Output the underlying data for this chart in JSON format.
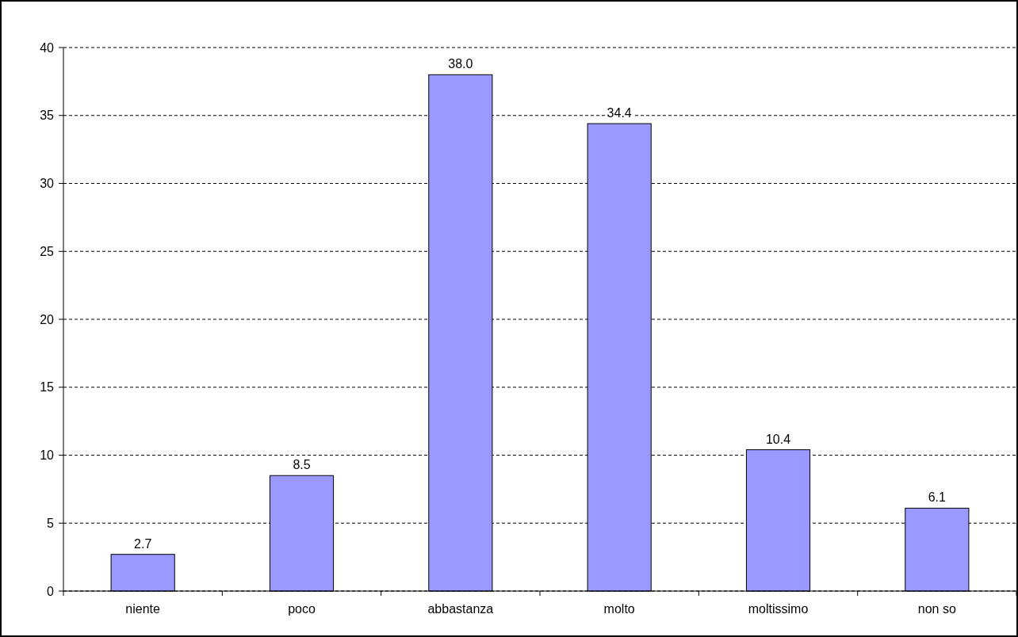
{
  "chart_data": {
    "type": "bar",
    "categories": [
      "niente",
      "poco",
      "abbastanza",
      "molto",
      "moltissimo",
      "non so"
    ],
    "values": [
      2.7,
      8.5,
      38.0,
      34.4,
      10.4,
      6.1
    ],
    "value_labels": [
      "2.7",
      "8.5",
      "38.0",
      "34.4",
      "10.4",
      "6.1"
    ],
    "color": "#9999ff",
    "ylim": [
      0,
      40
    ],
    "yticks": [
      0,
      5,
      10,
      15,
      20,
      25,
      30,
      35,
      40
    ],
    "grid": "y"
  }
}
